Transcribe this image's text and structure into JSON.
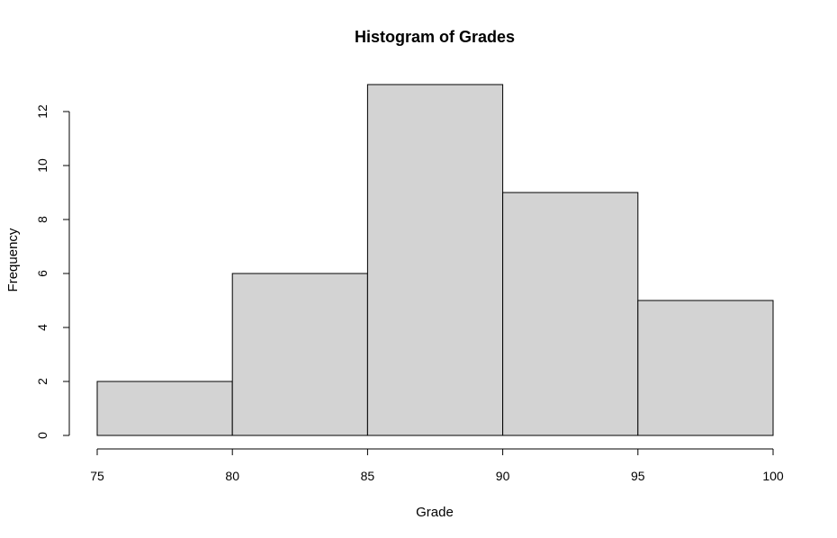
{
  "chart_data": {
    "type": "bar",
    "title": "Histogram of Grades",
    "xlabel": "Grade",
    "ylabel": "Frequency",
    "bins": [
      {
        "from": 75,
        "to": 80,
        "count": 2
      },
      {
        "from": 80,
        "to": 85,
        "count": 6
      },
      {
        "from": 85,
        "to": 90,
        "count": 13
      },
      {
        "from": 90,
        "to": 95,
        "count": 9
      },
      {
        "from": 95,
        "to": 100,
        "count": 5
      }
    ],
    "xlim": [
      75,
      100
    ],
    "ylim": [
      0,
      13
    ],
    "x_ticks": [
      75,
      80,
      85,
      90,
      95,
      100
    ],
    "y_ticks": [
      0,
      2,
      4,
      6,
      8,
      10,
      12
    ],
    "bar_color": "#d3d3d3",
    "border_color": "#000000",
    "grid": false,
    "legend": "none"
  }
}
